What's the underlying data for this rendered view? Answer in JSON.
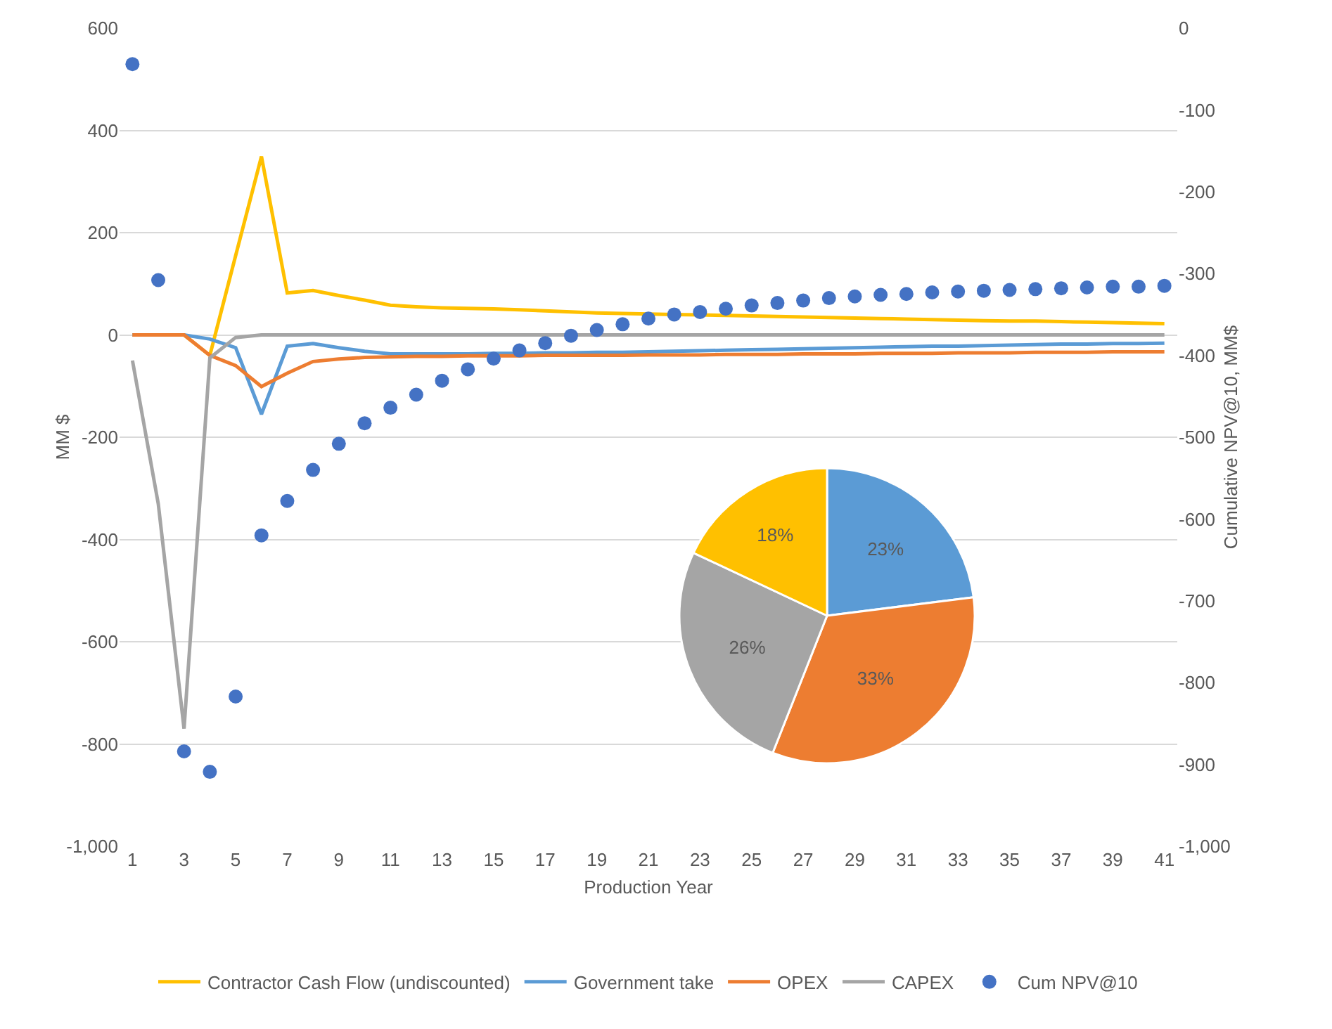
{
  "chart_data": [
    {
      "type": "line",
      "xlabel": "Production Year",
      "ylabel": "MM $",
      "y2label": "Cumulative NPV@10, MM$",
      "x": [
        1,
        2,
        3,
        4,
        5,
        6,
        7,
        8,
        9,
        10,
        11,
        12,
        13,
        14,
        15,
        16,
        17,
        18,
        19,
        20,
        21,
        22,
        23,
        24,
        25,
        26,
        27,
        28,
        29,
        30,
        31,
        32,
        33,
        34,
        35,
        36,
        37,
        38,
        39,
        40,
        41
      ],
      "xlim": [
        0.5,
        41.5
      ],
      "xticks": [
        1,
        3,
        5,
        7,
        9,
        11,
        13,
        15,
        17,
        19,
        21,
        23,
        25,
        27,
        29,
        31,
        33,
        35,
        37,
        39,
        41
      ],
      "ylim": [
        -1000,
        600
      ],
      "yticks": [
        600,
        400,
        200,
        0,
        -200,
        -400,
        -600,
        -800,
        {
          "value": -1000,
          "label": "-1,000"
        }
      ],
      "y2lim": [
        -1000,
        0
      ],
      "y2ticks": [
        0,
        -100,
        -200,
        -300,
        -400,
        -500,
        -600,
        -700,
        -800,
        -900,
        {
          "value": -1000,
          "label": "-1,000"
        }
      ],
      "grid": "y",
      "legend": "bottom",
      "line_style": "solid",
      "marker": "none",
      "series": [
        {
          "name": "Contractor Cash Flow (undiscounted)",
          "color": "#ffc000",
          "values": [
            0,
            0,
            0,
            -40,
            155,
            349,
            82,
            87,
            77,
            68,
            58,
            55,
            53,
            52,
            51,
            49,
            47,
            45,
            43,
            42,
            41,
            40,
            39,
            38,
            37,
            36,
            35,
            34,
            33,
            32,
            31,
            30,
            29,
            28,
            27,
            27,
            26,
            25,
            24,
            23,
            22
          ]
        },
        {
          "name": "Government take",
          "color": "#5b9bd5",
          "values": [
            0,
            0,
            0,
            -8,
            -25,
            -155,
            -22,
            -17,
            -25,
            -32,
            -37,
            -37,
            -37,
            -37,
            -36,
            -36,
            -35,
            -35,
            -34,
            -34,
            -33,
            -32,
            -31,
            -30,
            -29,
            -28,
            -27,
            -26,
            -25,
            -24,
            -23,
            -22,
            -22,
            -21,
            -20,
            -19,
            -18,
            -18,
            -17,
            -17,
            -16
          ]
        },
        {
          "name": "OPEX",
          "color": "#ed7d31",
          "values": [
            0,
            0,
            0,
            -40,
            -60,
            -101,
            -75,
            -52,
            -47,
            -44,
            -43,
            -42,
            -42,
            -41,
            -41,
            -41,
            -40,
            -40,
            -40,
            -40,
            -39,
            -39,
            -39,
            -38,
            -38,
            -38,
            -37,
            -37,
            -37,
            -36,
            -36,
            -36,
            -35,
            -35,
            -35,
            -34,
            -34,
            -34,
            -33,
            -33,
            -33
          ]
        },
        {
          "name": "CAPEX",
          "color": "#a5a5a5",
          "values": [
            -50,
            -330,
            -770,
            -45,
            -5,
            0,
            0,
            0,
            0,
            0,
            0,
            0,
            0,
            0,
            0,
            0,
            0,
            0,
            0,
            0,
            0,
            0,
            0,
            0,
            0,
            0,
            0,
            0,
            0,
            0,
            0,
            0,
            0,
            0,
            0,
            0,
            0,
            0,
            0,
            0,
            0
          ]
        },
        {
          "name": "Cum NPV@10",
          "type": "scatter",
          "marker": "circle",
          "axis": "y2",
          "color": "#4472c4",
          "values": [
            -44,
            -308,
            -884,
            -909,
            -817,
            -620,
            -578,
            -540,
            -508,
            -483,
            -464,
            -448,
            -431,
            -417,
            -404,
            -394,
            -385,
            -376,
            -369,
            -362,
            -355,
            -350,
            -347,
            -343,
            -339,
            -336,
            -333,
            -330,
            -328,
            -326,
            -325,
            -323,
            -322,
            -321,
            -320,
            -319,
            -318,
            -317,
            -316,
            -316,
            -315
          ]
        }
      ]
    },
    {
      "type": "pie",
      "categories": [
        null,
        null,
        null,
        null
      ],
      "values": [
        23,
        33,
        26,
        18
      ],
      "value_labels": [
        "23%",
        "33%",
        "26%",
        "18%"
      ],
      "colors": [
        "#5b9bd5",
        "#ed7d31",
        "#a5a5a5",
        "#ffc000"
      ]
    }
  ]
}
